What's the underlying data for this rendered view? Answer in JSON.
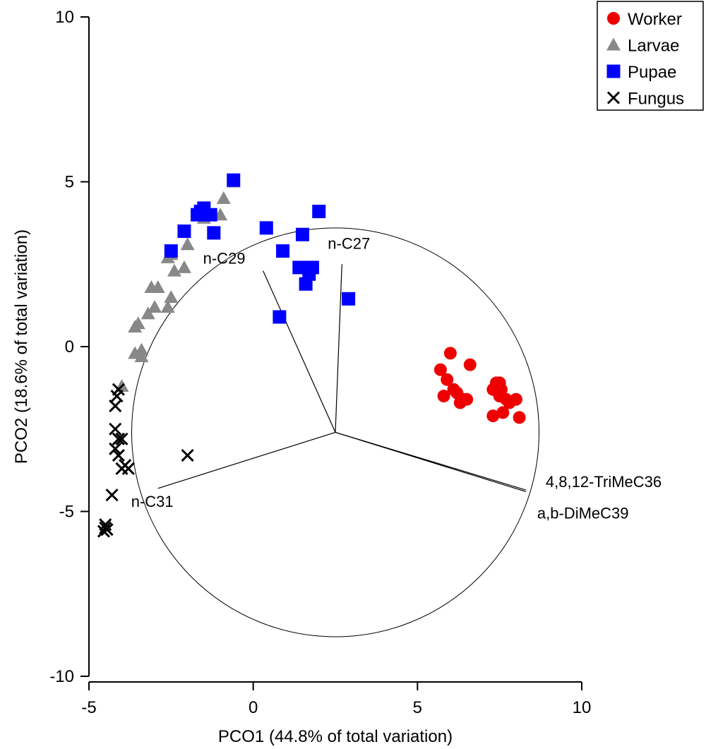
{
  "chart_data": {
    "type": "scatter",
    "xlabel": "PCO1 (44.8% of total variation)",
    "ylabel": "PCO2 (18.6% of total variation)",
    "xlim": [
      -5,
      10
    ],
    "ylim": [
      -10,
      10
    ],
    "x_ticks": [
      -5,
      0,
      5,
      10
    ],
    "y_ticks": [
      -10,
      -5,
      0,
      5,
      10
    ],
    "grid": false,
    "legend_position": "top-right",
    "series": [
      {
        "name": "Worker",
        "marker": "circle",
        "color": "#ee0000",
        "points": [
          [
            5.7,
            -0.7
          ],
          [
            5.8,
            -1.5
          ],
          [
            5.9,
            -1.0
          ],
          [
            6.0,
            -0.2
          ],
          [
            6.1,
            -1.3
          ],
          [
            6.2,
            -1.4
          ],
          [
            6.3,
            -1.7
          ],
          [
            6.4,
            -1.6
          ],
          [
            6.5,
            -1.6
          ],
          [
            6.6,
            -0.55
          ],
          [
            7.3,
            -1.3
          ],
          [
            7.3,
            -2.1
          ],
          [
            7.4,
            -1.1
          ],
          [
            7.5,
            -1.1
          ],
          [
            7.5,
            -1.5
          ],
          [
            7.6,
            -2.0
          ],
          [
            7.7,
            -1.6
          ],
          [
            7.8,
            -1.7
          ],
          [
            8.0,
            -1.6
          ],
          [
            8.1,
            -2.15
          ],
          [
            7.55,
            -1.3
          ]
        ]
      },
      {
        "name": "Larvae",
        "marker": "triangle",
        "color": "#888888",
        "points": [
          [
            -4.0,
            -1.2
          ],
          [
            -3.6,
            -0.2
          ],
          [
            -3.4,
            -0.1
          ],
          [
            -3.4,
            -0.3
          ],
          [
            -3.5,
            0.7
          ],
          [
            -3.6,
            0.6
          ],
          [
            -3.2,
            1.0
          ],
          [
            -3.0,
            1.2
          ],
          [
            -3.1,
            1.8
          ],
          [
            -2.9,
            1.8
          ],
          [
            -2.6,
            1.2
          ],
          [
            -2.5,
            1.5
          ],
          [
            -2.4,
            2.3
          ],
          [
            -2.1,
            2.4
          ],
          [
            -2.0,
            3.1
          ],
          [
            -2.5,
            2.8
          ],
          [
            -2.6,
            2.7
          ],
          [
            -1.7,
            4.1
          ],
          [
            -1.0,
            4.0
          ],
          [
            -0.9,
            4.5
          ],
          [
            -0.6,
            5.0
          ],
          [
            -1.5,
            3.9
          ]
        ]
      },
      {
        "name": "Pupae",
        "marker": "square",
        "color": "#0000ff",
        "points": [
          [
            -0.6,
            5.05
          ],
          [
            -1.6,
            4.1
          ],
          [
            -1.5,
            4.2
          ],
          [
            -1.3,
            4.0
          ],
          [
            -1.7,
            4.0
          ],
          [
            -1.2,
            3.45
          ],
          [
            -2.1,
            3.5
          ],
          [
            -2.5,
            2.9
          ],
          [
            0.4,
            3.6
          ],
          [
            2.0,
            4.1
          ],
          [
            1.5,
            3.4
          ],
          [
            0.9,
            2.9
          ],
          [
            1.4,
            2.4
          ],
          [
            1.8,
            2.4
          ],
          [
            1.7,
            2.2
          ],
          [
            1.6,
            1.9
          ],
          [
            0.8,
            0.9
          ],
          [
            2.9,
            1.45
          ]
        ]
      },
      {
        "name": "Fungus",
        "marker": "x",
        "color": "#000000",
        "points": [
          [
            -4.1,
            -1.3
          ],
          [
            -4.15,
            -1.5
          ],
          [
            -4.2,
            -1.8
          ],
          [
            -4.2,
            -2.5
          ],
          [
            -4.1,
            -2.8
          ],
          [
            -4.0,
            -2.8
          ],
          [
            -4.2,
            -3.1
          ],
          [
            -4.1,
            -3.3
          ],
          [
            -3.9,
            -3.6
          ],
          [
            -3.8,
            -3.7
          ],
          [
            -4.0,
            -3.7
          ],
          [
            -2.0,
            -3.3
          ],
          [
            -4.3,
            -4.5
          ],
          [
            -4.5,
            -5.4
          ],
          [
            -4.55,
            -5.6
          ],
          [
            -4.45,
            -5.55
          ],
          [
            -4.5,
            -5.5
          ]
        ]
      }
    ],
    "correlation_circle": {
      "center": [
        2.5,
        -2.6
      ],
      "radius": 6.2
    },
    "vectors": [
      {
        "label": "n-C27",
        "end": [
          2.7,
          2.5
        ]
      },
      {
        "label": "n-C29",
        "end": [
          0.3,
          2.3
        ]
      },
      {
        "label": "n-C31",
        "end": [
          -2.9,
          -4.3
        ]
      },
      {
        "label": "4,8,12-TriMeC36",
        "end": [
          8.3,
          -4.35
        ]
      },
      {
        "label": "a,b-DiMeC39",
        "end": [
          8.3,
          -4.4
        ]
      }
    ]
  }
}
